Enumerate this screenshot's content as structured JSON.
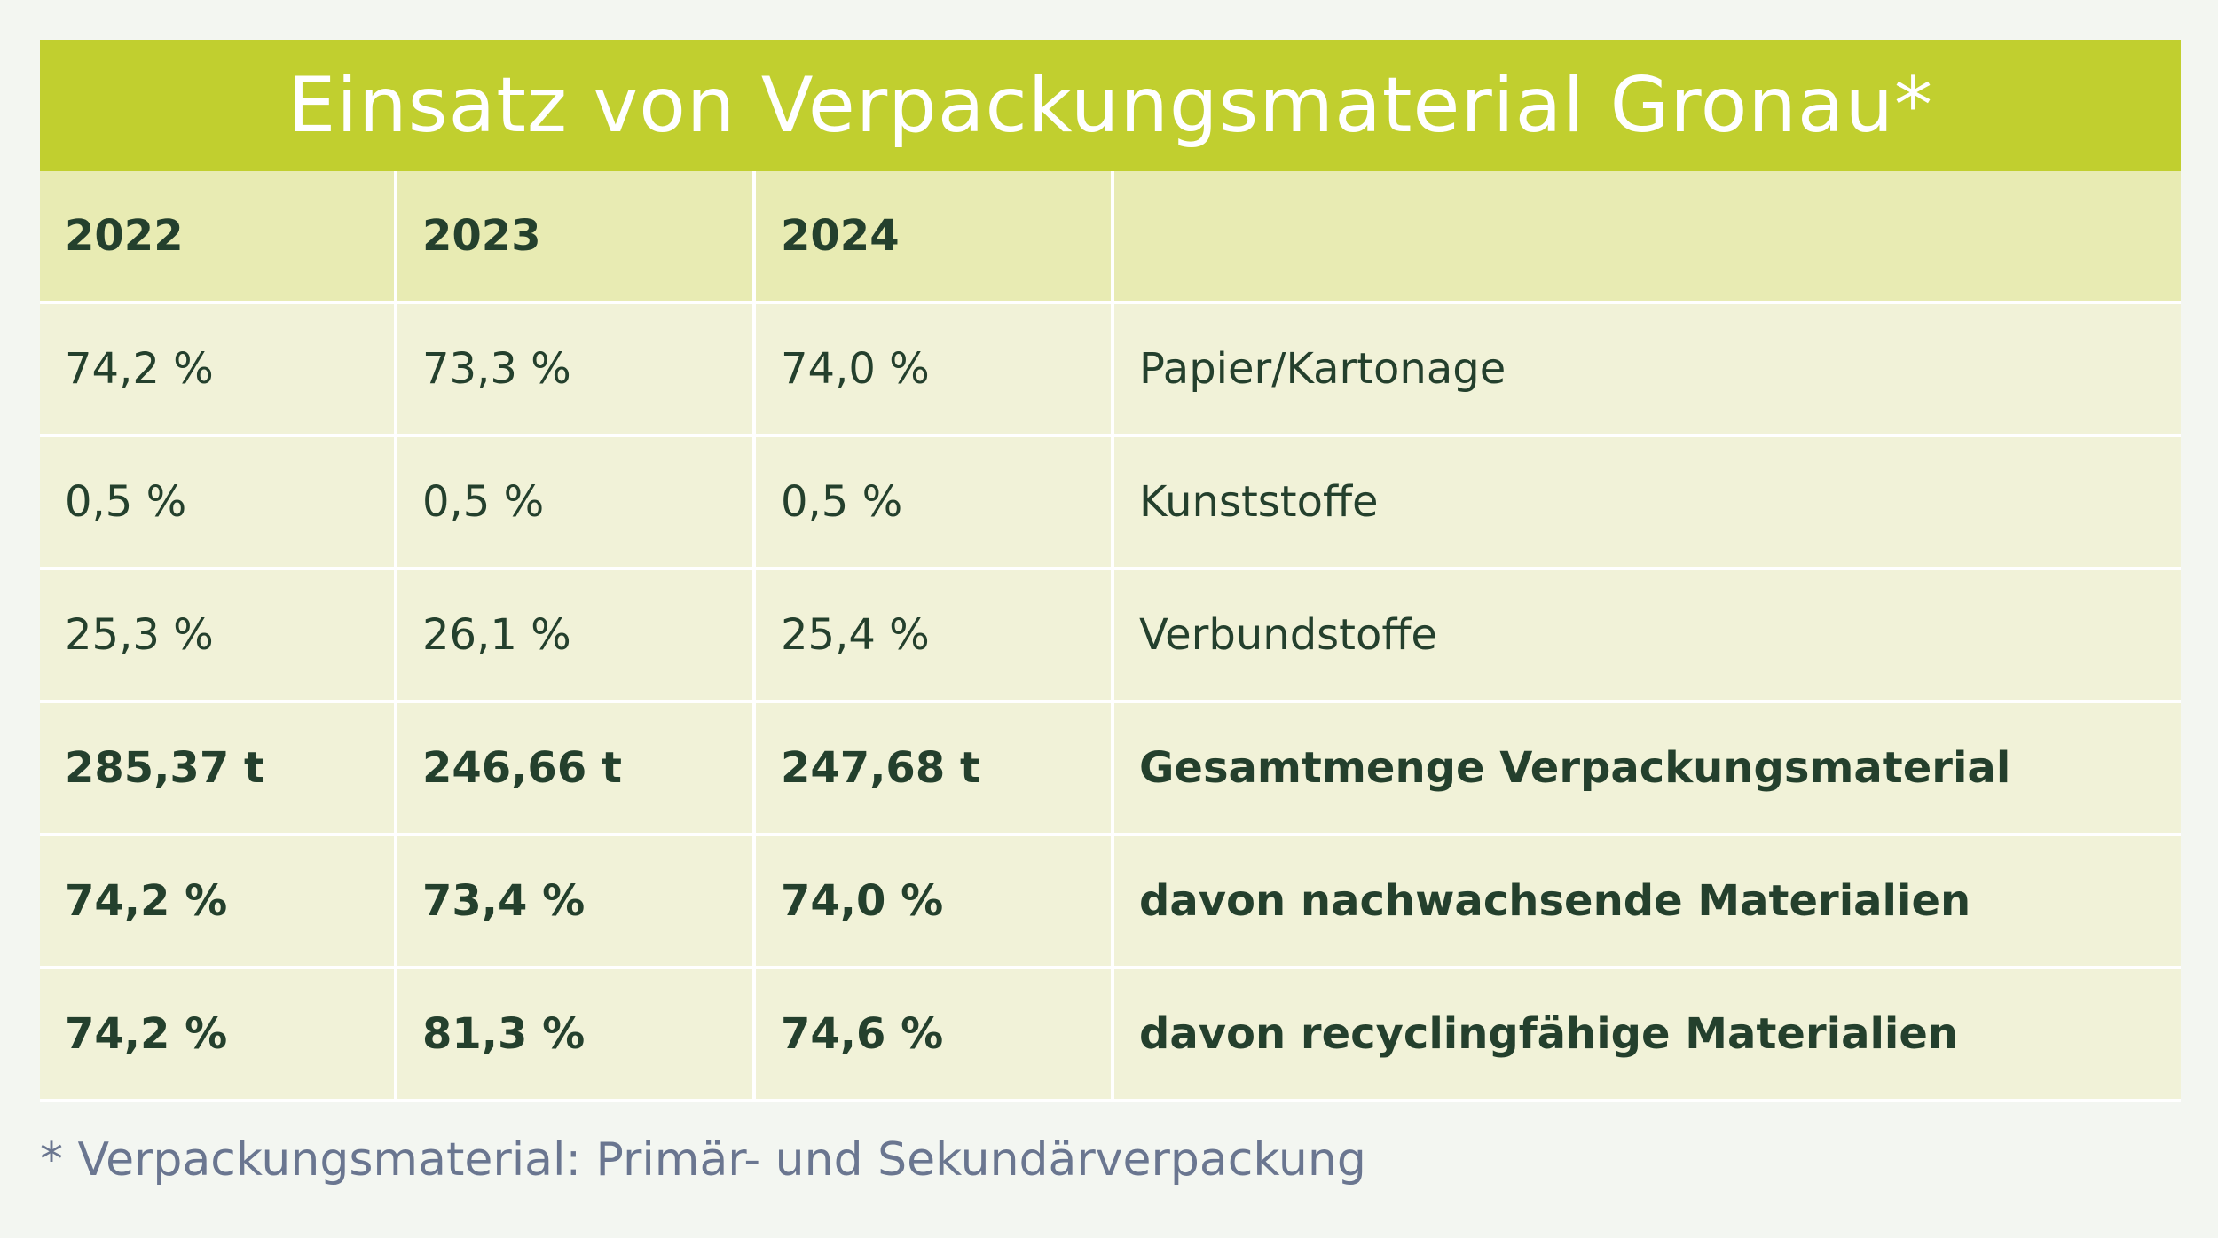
{
  "title": "Einsatz von Verpackungsmaterial Gronau*",
  "table": {
    "headers": [
      "2022",
      "2023",
      "2024",
      ""
    ],
    "rows": [
      {
        "cells": [
          "74,2 %",
          "73,3 %",
          "74,0 %",
          "Papier/Kartonage"
        ],
        "bold": false
      },
      {
        "cells": [
          "0,5 %",
          "0,5 %",
          "0,5 %",
          "Kunststoffe"
        ],
        "bold": false
      },
      {
        "cells": [
          "25,3 %",
          "26,1 %",
          "25,4 %",
          "Verbundstoffe"
        ],
        "bold": false
      },
      {
        "cells": [
          "285,37 t",
          "246,66 t",
          "247,68 t",
          "Gesamtmenge Verpackungsmaterial"
        ],
        "bold": true
      },
      {
        "cells": [
          "74,2 %",
          "73,4 %",
          "74,0 %",
          "davon nachwachsende Materialien"
        ],
        "bold": true
      },
      {
        "cells": [
          "74,2 %",
          "81,3 %",
          "74,6 %",
          "davon recyclingfähige Materialien"
        ],
        "bold": true
      }
    ]
  },
  "footnote": "* Verpackungsmaterial: Primär- und Sekundärverpackung",
  "colors": {
    "title_bar": "#c1cf2f",
    "header_row": "#e8ebb3",
    "body_row": "#f1f2d8",
    "text": "#24402d",
    "footnote": "#6a7690"
  }
}
